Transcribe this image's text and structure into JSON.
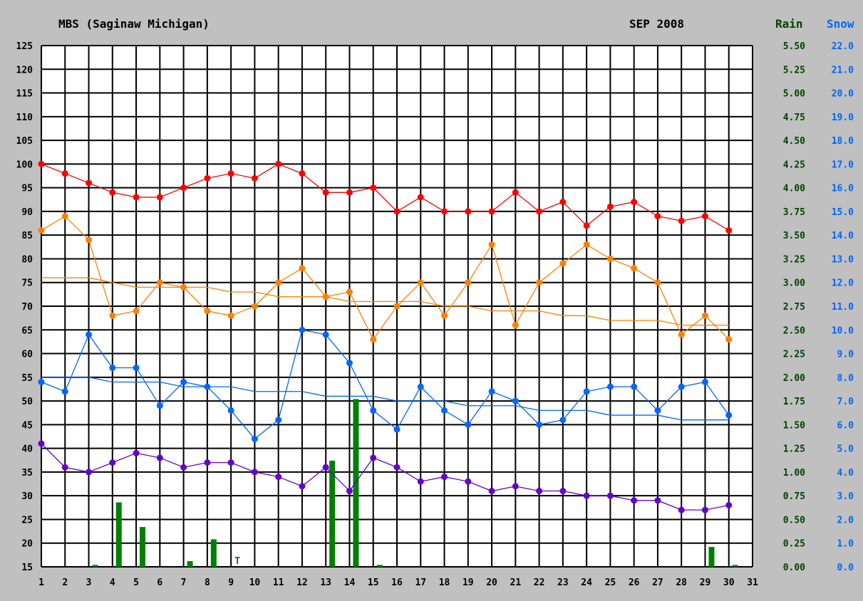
{
  "station": "MBS (Saginaw Michigan)",
  "period": "SEP 2008",
  "rain_label": "Rain",
  "snow_label": "Snow",
  "colors": {
    "background": "#c0c0c0",
    "plot": "#ffffff",
    "grid": "#000000",
    "rain": "#008000",
    "rain_text": "#004400",
    "snow_text": "#0066ff",
    "record_high": "#ff0000",
    "high": "#ff8000",
    "low": "#0066ff",
    "record_low": "#6600cc"
  },
  "chart_data": {
    "type": "line",
    "x": [
      1,
      2,
      3,
      4,
      5,
      6,
      7,
      8,
      9,
      10,
      11,
      12,
      13,
      14,
      15,
      16,
      17,
      18,
      19,
      20,
      21,
      22,
      23,
      24,
      25,
      26,
      27,
      28,
      29,
      30
    ],
    "xlim": [
      1,
      31
    ],
    "x_ticks": [
      "1",
      "2",
      "3",
      "4",
      "5",
      "6",
      "7",
      "8",
      "9",
      "10",
      "11",
      "12",
      "13",
      "14",
      "15",
      "16",
      "17",
      "18",
      "19",
      "20",
      "21",
      "22",
      "23",
      "24",
      "25",
      "26",
      "27",
      "28",
      "29",
      "30",
      "31"
    ],
    "ylim": [
      15,
      125
    ],
    "y_ticks": [
      "15",
      "20",
      "25",
      "30",
      "35",
      "40",
      "45",
      "50",
      "55",
      "60",
      "65",
      "70",
      "75",
      "80",
      "85",
      "90",
      "95",
      "100",
      "105",
      "110",
      "115",
      "120",
      "125"
    ],
    "rain_ticks": [
      "0.00",
      "0.25",
      "0.50",
      "0.75",
      "1.00",
      "1.25",
      "1.50",
      "1.75",
      "2.00",
      "2.25",
      "2.50",
      "2.75",
      "3.00",
      "3.25",
      "3.50",
      "3.75",
      "4.00",
      "4.25",
      "4.50",
      "4.75",
      "5.00",
      "5.25",
      "5.50"
    ],
    "snow_ticks": [
      "0.0",
      "1.0",
      "2.0",
      "3.0",
      "4.0",
      "5.0",
      "6.0",
      "7.0",
      "8.0",
      "9.0",
      "10.0",
      "11.0",
      "12.0",
      "13.0",
      "14.0",
      "15.0",
      "16.0",
      "17.0",
      "18.0",
      "19.0",
      "20.0",
      "21.0",
      "22.0"
    ],
    "rain_ylim": [
      0,
      5.5
    ],
    "snow_ylim": [
      0,
      22
    ],
    "series": [
      {
        "key": "record_high",
        "markers": true,
        "values": [
          100,
          98,
          96,
          94,
          93,
          93,
          95,
          97,
          98,
          97,
          100,
          98,
          94,
          94,
          95,
          90,
          93,
          90,
          90,
          90,
          94,
          90,
          92,
          87,
          91,
          92,
          89,
          88,
          89,
          86
        ]
      },
      {
        "key": "high",
        "markers": true,
        "values": [
          86,
          89,
          84,
          68,
          69,
          75,
          74,
          69,
          68,
          70,
          75,
          78,
          72,
          73,
          63,
          70,
          75,
          68,
          75,
          83,
          66,
          75,
          79,
          83,
          80,
          78,
          75,
          64,
          68,
          63
        ]
      },
      {
        "key": "normal_high",
        "markers": false,
        "values": [
          76,
          76,
          76,
          75,
          74,
          74,
          74,
          74,
          73,
          73,
          72,
          72,
          72,
          71,
          71,
          71,
          71,
          70,
          70,
          69,
          69,
          69,
          68,
          68,
          67,
          67,
          67,
          66,
          66,
          66
        ]
      },
      {
        "key": "low",
        "markers": true,
        "values": [
          54,
          52,
          64,
          57,
          57,
          49,
          54,
          53,
          48,
          42,
          46,
          65,
          64,
          58,
          48,
          44,
          53,
          48,
          45,
          52,
          50,
          45,
          46,
          52,
          53,
          53,
          48,
          53,
          54,
          47
        ]
      },
      {
        "key": "normal_low",
        "markers": false,
        "values": [
          55,
          55,
          55,
          54,
          54,
          54,
          53,
          53,
          53,
          52,
          52,
          52,
          51,
          51,
          51,
          50,
          50,
          50,
          49,
          49,
          49,
          48,
          48,
          48,
          47,
          47,
          47,
          46,
          46,
          46
        ]
      },
      {
        "key": "record_low",
        "markers": true,
        "values": [
          41,
          36,
          35,
          37,
          39,
          38,
          36,
          37,
          37,
          35,
          34,
          32,
          36,
          31,
          38,
          36,
          33,
          34,
          33,
          31,
          32,
          31,
          31,
          30,
          30,
          29,
          29,
          27,
          27,
          28
        ]
      }
    ],
    "precip": [
      {
        "day": 3,
        "value": 0.02
      },
      {
        "day": 4,
        "value": 0.68
      },
      {
        "day": 5,
        "value": 0.42
      },
      {
        "day": 7,
        "value": 0.06
      },
      {
        "day": 8,
        "value": 0.29
      },
      {
        "day": 9,
        "value": 0,
        "label": "T"
      },
      {
        "day": 13,
        "value": 1.12
      },
      {
        "day": 14,
        "value": 1.77
      },
      {
        "day": 15,
        "value": 0.02
      },
      {
        "day": 29,
        "value": 0.21
      },
      {
        "day": 30,
        "value": 0.02
      }
    ]
  }
}
